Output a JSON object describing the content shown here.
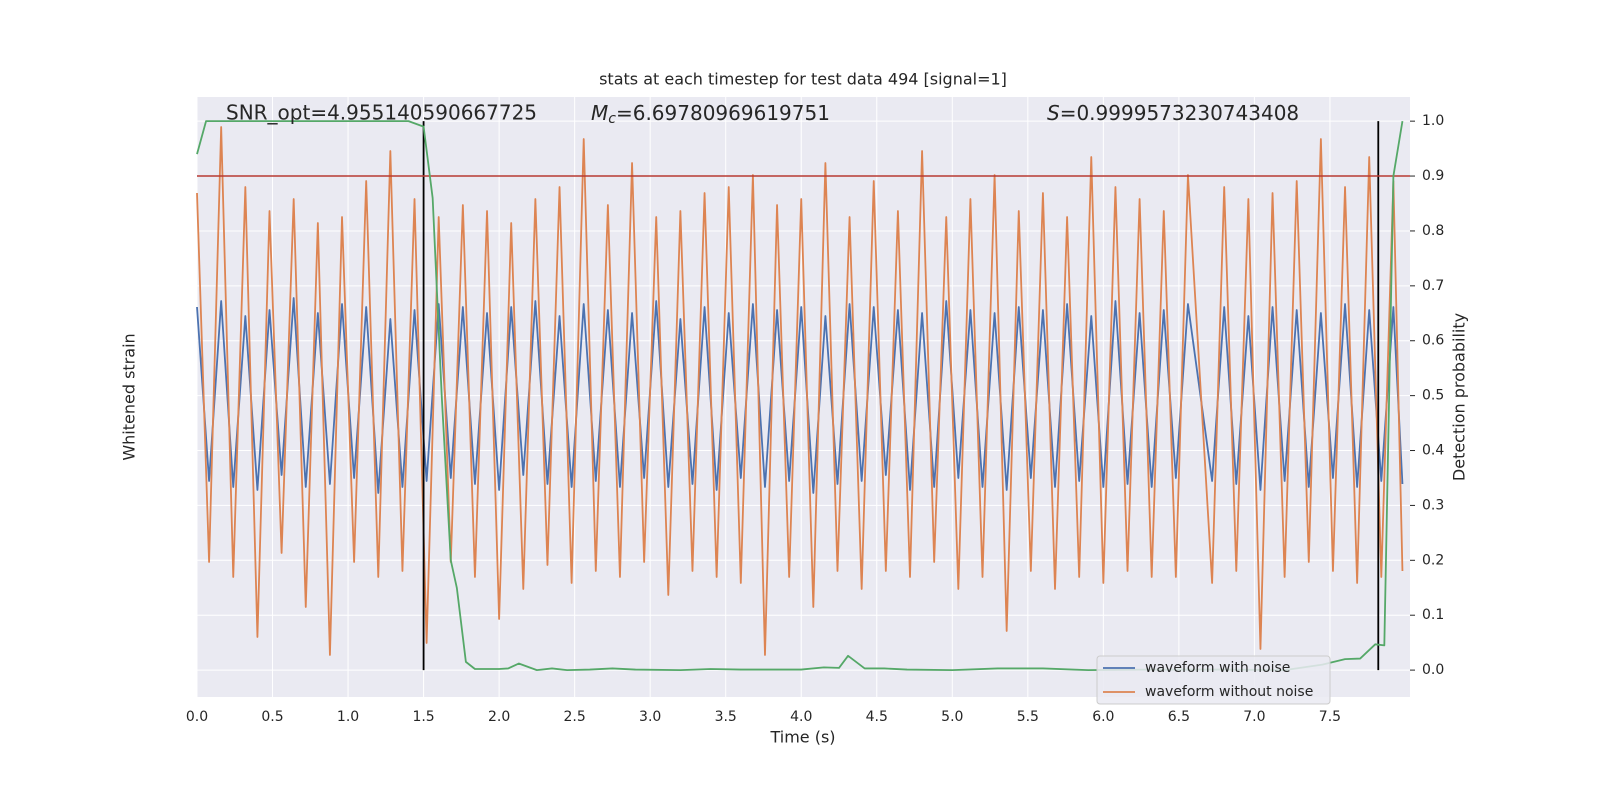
{
  "chart_data": {
    "type": "line",
    "title": "stats at each timestep for test data 494 [signal=1]",
    "x_label": "Time (s)",
    "y_label": "Whitened strain",
    "y2_label": "Detection probability",
    "snr_label": "SNR_opt=4.955140590667725",
    "mc_label": {
      "symbol": "M",
      "subscript": "c",
      "text": "=6.69780969619751"
    },
    "s_label": {
      "symbol": "S",
      "text": "=0.9999573230743408"
    },
    "xlim": [
      0,
      8.03
    ],
    "xticks": [
      {
        "value": 0,
        "label": "0.0"
      },
      0.5,
      {
        "value": 1,
        "label": "1.0"
      },
      1.5,
      {
        "value": 2,
        "label": "2.0"
      },
      2.5,
      {
        "value": 3,
        "label": "3.0"
      },
      3.5,
      {
        "value": 4,
        "label": "4.0"
      },
      4.5,
      {
        "value": 5,
        "label": "5.0"
      },
      5.5,
      {
        "value": 6,
        "label": "6.0"
      },
      6.5,
      {
        "value": 7,
        "label": "7.0"
      },
      7.5
    ],
    "ylim": [
      -1,
      1
    ],
    "y2lim": [
      -0.049,
      1.044
    ],
    "y2ticks": [
      {
        "value": 0,
        "label": "0.0"
      },
      0.1,
      0.2,
      0.3,
      0.4,
      0.5,
      0.6,
      0.7,
      0.8,
      0.9,
      {
        "value": 1,
        "label": "1.0"
      }
    ],
    "grid": true,
    "legend": "lower right",
    "threshold": {
      "value": 0.9,
      "color": "#b83a32",
      "axis": "y2"
    },
    "vlines": {
      "values": [
        1.5,
        7.82
      ],
      "color": "#000000"
    },
    "x": [
      0,
      0.08,
      0.16,
      0.24,
      0.32,
      0.4,
      0.48,
      0.56,
      0.64,
      0.72,
      0.8,
      0.88,
      0.96,
      1.04,
      1.12,
      1.2,
      1.28,
      1.36,
      1.44,
      1.52,
      1.6,
      1.68,
      1.76,
      1.84,
      1.92,
      2.0,
      2.08,
      2.16,
      2.24,
      2.32,
      2.4,
      2.48,
      2.56,
      2.64,
      2.72,
      2.8,
      2.88,
      2.96,
      3.04,
      3.12,
      3.2,
      3.28,
      3.36,
      3.44,
      3.52,
      3.6,
      3.68,
      3.76,
      3.84,
      3.92,
      4.0,
      4.08,
      4.16,
      4.24,
      4.32,
      4.4,
      4.48,
      4.56,
      4.64,
      4.72,
      4.8,
      4.88,
      4.96,
      5.04,
      5.12,
      5.2,
      5.28,
      5.36,
      5.44,
      5.52,
      5.6,
      5.68,
      5.76,
      5.84,
      5.92,
      6.0,
      6.08,
      6.16,
      6.24,
      6.32,
      6.4,
      6.48,
      6.56,
      6.72,
      6.8,
      6.88,
      6.96,
      7.04,
      7.12,
      7.2,
      7.28,
      7.36,
      7.44,
      7.52,
      7.6,
      7.68,
      7.76,
      7.84,
      7.92,
      7.98
    ],
    "series": [
      {
        "name": "waveform with noise",
        "color": "#4c72b0",
        "values": [
          0.3,
          -0.28,
          0.32,
          -0.3,
          0.27,
          -0.31,
          0.29,
          -0.26,
          0.33,
          -0.3,
          0.28,
          -0.29,
          0.31,
          -0.27,
          0.3,
          -0.32,
          0.26,
          -0.3,
          0.29,
          -0.28,
          0.31,
          -0.27,
          0.3,
          -0.29,
          0.28,
          -0.31,
          0.3,
          -0.26,
          0.32,
          -0.29,
          0.27,
          -0.3,
          0.31,
          -0.28,
          0.29,
          -0.3,
          0.28,
          -0.27,
          0.32,
          -0.3,
          0.26,
          -0.29,
          0.3,
          -0.31,
          0.28,
          -0.27,
          0.31,
          -0.3,
          0.29,
          -0.28,
          0.3,
          -0.32,
          0.27,
          -0.29,
          0.31,
          -0.28,
          0.3,
          -0.26,
          0.29,
          -0.31,
          0.28,
          -0.3,
          0.32,
          -0.27,
          0.29,
          -0.3,
          0.28,
          -0.31,
          0.3,
          -0.27,
          0.29,
          -0.3,
          0.31,
          -0.28,
          0.27,
          -0.3,
          0.32,
          -0.29,
          0.28,
          -0.3,
          0.29,
          -0.27,
          0.31,
          -0.28,
          0.3,
          -0.29,
          0.27,
          -0.31,
          0.3,
          -0.28,
          0.29,
          -0.3,
          0.28,
          -0.27,
          0.31,
          -0.3,
          0.29,
          -0.28,
          0.3,
          -0.29
        ]
      },
      {
        "name": "waveform without noise",
        "color": "#dd8452",
        "values": [
          0.68,
          -0.55,
          0.9,
          -0.6,
          0.7,
          -0.8,
          0.62,
          -0.52,
          0.66,
          -0.7,
          0.58,
          -0.86,
          0.6,
          -0.55,
          0.72,
          -0.6,
          0.82,
          -0.58,
          0.66,
          -0.82,
          0.6,
          -0.55,
          0.64,
          -0.6,
          0.62,
          -0.74,
          0.58,
          -0.64,
          0.66,
          -0.56,
          0.7,
          -0.62,
          0.86,
          -0.58,
          0.64,
          -0.6,
          0.78,
          -0.55,
          0.6,
          -0.66,
          0.62,
          -0.58,
          0.68,
          -0.6,
          0.7,
          -0.62,
          0.74,
          -0.86,
          0.64,
          -0.6,
          0.66,
          -0.7,
          0.78,
          -0.58,
          0.6,
          -0.64,
          0.72,
          -0.58,
          0.62,
          -0.6,
          0.82,
          -0.55,
          0.6,
          -0.64,
          0.66,
          -0.6,
          0.74,
          -0.78,
          0.62,
          -0.58,
          0.68,
          -0.64,
          0.6,
          -0.6,
          0.8,
          -0.62,
          0.7,
          -0.58,
          0.66,
          -0.6,
          0.62,
          -0.6,
          0.74,
          -0.62,
          0.7,
          -0.58,
          0.66,
          -0.84,
          0.68,
          -0.6,
          0.72,
          -0.55,
          0.86,
          -0.58,
          0.7,
          -0.62,
          0.8,
          -0.6,
          0.72,
          -0.58
        ]
      },
      {
        "color": "#55a868",
        "axis": "y2",
        "x": [
          0,
          0.06,
          0.4,
          1.0,
          1.4,
          1.5,
          1.56,
          1.62,
          1.68,
          1.72,
          1.78,
          1.84,
          2.0,
          2.06,
          2.13,
          2.25,
          2.35,
          2.45,
          2.6,
          2.75,
          2.9,
          3.2,
          3.4,
          3.6,
          4.0,
          4.15,
          4.25,
          4.31,
          4.42,
          4.55,
          4.7,
          5.0,
          5.3,
          5.6,
          5.9,
          6.3,
          6.8,
          7.2,
          7.45,
          7.6,
          7.7,
          7.8,
          7.86,
          7.92,
          7.98
        ],
        "values": [
          0.94,
          1.0,
          1.0,
          1.0,
          1.0,
          0.99,
          0.86,
          0.5,
          0.2,
          0.15,
          0.015,
          0.002,
          0.002,
          0.003,
          0.012,
          0.0,
          0.003,
          0.0,
          0.001,
          0.003,
          0.001,
          0.0,
          0.002,
          0.001,
          0.001,
          0.005,
          0.004,
          0.026,
          0.003,
          0.003,
          0.001,
          0.0,
          0.003,
          0.003,
          0.0,
          0.001,
          0.001,
          0.0,
          0.01,
          0.02,
          0.021,
          0.047,
          0.045,
          0.9,
          1.0
        ]
      }
    ]
  }
}
